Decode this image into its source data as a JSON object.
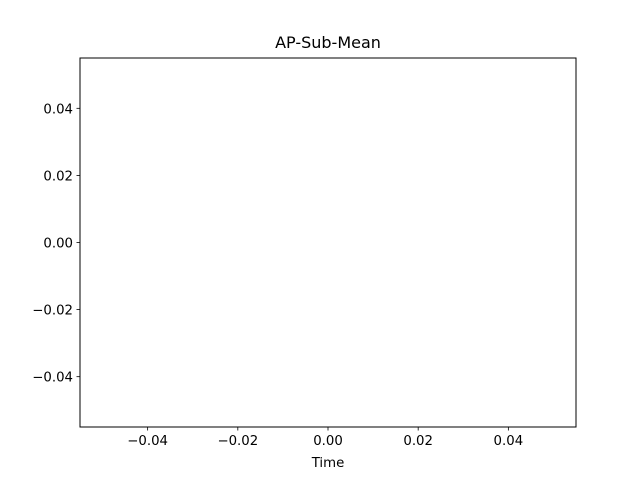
{
  "chart_data": {
    "type": "line",
    "title": "AP-Sub-Mean",
    "xlabel": "Time",
    "ylabel": "",
    "xlim": [
      -0.055,
      0.055
    ],
    "ylim": [
      -0.055,
      0.055
    ],
    "xticks": [
      -0.04,
      -0.02,
      0.0,
      0.02,
      0.04
    ],
    "xtick_labels": [
      "−0.04",
      "−0.02",
      "0.00",
      "0.02",
      "0.04"
    ],
    "yticks": [
      -0.04,
      -0.02,
      0.0,
      0.02,
      0.04
    ],
    "ytick_labels": [
      "−0.04",
      "−0.02",
      "0.00",
      "0.02",
      "0.04"
    ],
    "grid": false,
    "series": []
  }
}
